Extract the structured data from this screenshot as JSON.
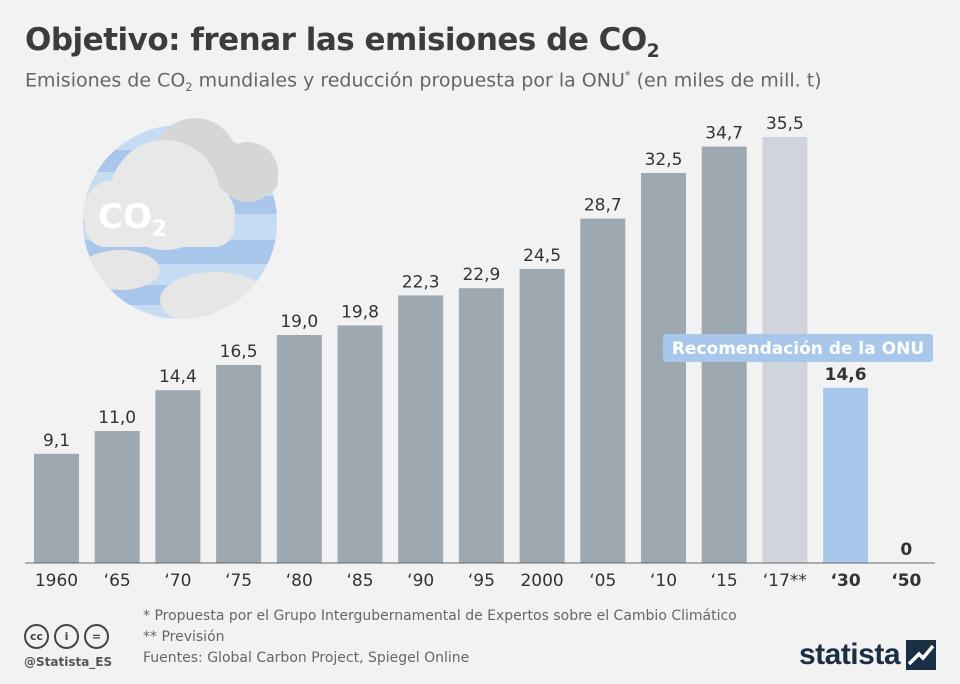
{
  "header": {
    "title_main": "Objetivo: frenar las emisiones de CO",
    "title_sub": "2",
    "subtitle_a": "Emisiones de CO",
    "subtitle_sub": "2",
    "subtitle_b": " mundiales y reducción propuesta por la ONU",
    "subtitle_sup": "*",
    "subtitle_c": " (en miles de mill. t)"
  },
  "illustration": {
    "icon": "co2-cloud-globe-icon",
    "label": "CO",
    "label_sub": "2"
  },
  "chart_data": {
    "type": "bar",
    "categories": [
      "1960",
      "‘65",
      "‘70",
      "‘75",
      "‘80",
      "‘85",
      "‘90",
      "‘95",
      "2000",
      "‘05",
      "‘10",
      "‘15",
      "‘17**",
      "‘30",
      "‘50"
    ],
    "values": [
      9.1,
      11.0,
      14.4,
      16.5,
      19.0,
      19.8,
      22.3,
      22.9,
      24.5,
      28.7,
      32.5,
      34.7,
      35.5,
      14.6,
      0
    ],
    "value_labels": [
      "9,1",
      "11,0",
      "14,4",
      "16,5",
      "19,0",
      "19,8",
      "22,3",
      "22,9",
      "24,5",
      "28,7",
      "32,5",
      "34,7",
      "35,5",
      "14,6",
      "0"
    ],
    "bar_kind": [
      "historic",
      "historic",
      "historic",
      "historic",
      "historic",
      "historic",
      "historic",
      "historic",
      "historic",
      "historic",
      "historic",
      "historic",
      "forecast",
      "onu",
      "onu"
    ],
    "colors": {
      "historic": "#9ea8b0",
      "forecast": "#cfd5da",
      "onu": "#a9c7ea",
      "label_box": "#a9c7ea",
      "label_box_text": "#ffffff"
    },
    "ylim": [
      0,
      40
    ],
    "grid": false,
    "annotation": "Recomendación de la ONU"
  },
  "footer": {
    "note1": "*   Propuesta por el Grupo Intergubernamental de Expertos sobre el Cambio Climático",
    "note2": "** Previsión",
    "sources": "Fuentes: Global Carbon Project, Spiegel Online",
    "handle": "@Statista_ES",
    "cc_icons": [
      "cc-icon",
      "by-icon",
      "nd-icon"
    ],
    "cc_glyphs": [
      "cc",
      "i",
      "="
    ],
    "brand": "statista"
  }
}
